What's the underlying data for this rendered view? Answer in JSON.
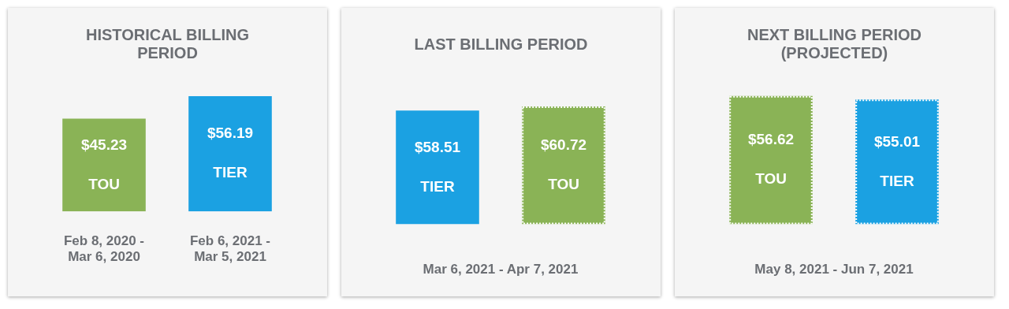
{
  "chart_data": [
    {
      "type": "bar",
      "title": "HISTORICAL BILLING PERIOD",
      "categories": [
        "Feb 8, 2020 - Mar 6, 2020",
        "Feb 6, 2021 - Mar 5, 2021"
      ],
      "series": [
        {
          "name": "TOU",
          "color": "#8ab356",
          "values": [
            45.23,
            null
          ],
          "value_labels": [
            "$45.23",
            null
          ]
        },
        {
          "name": "TIER",
          "color": "#1ba1e2",
          "values": [
            null,
            56.19
          ],
          "value_labels": [
            null,
            "$56.19"
          ]
        }
      ]
    },
    {
      "type": "bar",
      "title": "LAST BILLING PERIOD",
      "xlabel": "Mar 6, 2021 - Apr 7, 2021",
      "categories": [
        "TIER",
        "TOU"
      ],
      "series": [
        {
          "color": "#1ba1e2",
          "values": [
            58.51,
            null
          ],
          "value_labels": [
            "$58.51",
            null
          ]
        },
        {
          "color": "#8ab356",
          "values": [
            null,
            60.72
          ],
          "value_labels": [
            null,
            "$60.72"
          ],
          "line_style": "dotted"
        }
      ]
    },
    {
      "type": "bar",
      "title": "NEXT BILLING PERIOD (PROJECTED)",
      "xlabel": "May 8, 2021 - Jun 7, 2021",
      "categories": [
        "TOU",
        "TIER"
      ],
      "line_style": "dotted",
      "series": [
        {
          "color": "#8ab356",
          "values": [
            56.62,
            null
          ],
          "value_labels": [
            "$56.62",
            null
          ]
        },
        {
          "color": "#1ba1e2",
          "values": [
            null,
            55.01
          ],
          "value_labels": [
            null,
            "$55.01"
          ]
        }
      ]
    }
  ]
}
